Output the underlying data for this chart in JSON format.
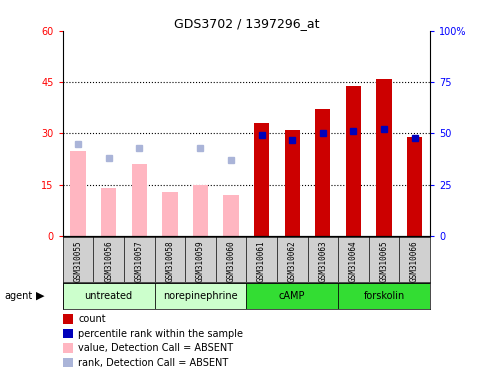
{
  "title": "GDS3702 / 1397296_at",
  "samples": [
    "GSM310055",
    "GSM310056",
    "GSM310057",
    "GSM310058",
    "GSM310059",
    "GSM310060",
    "GSM310061",
    "GSM310062",
    "GSM310063",
    "GSM310064",
    "GSM310065",
    "GSM310066"
  ],
  "count_values": [
    null,
    null,
    null,
    null,
    null,
    null,
    33,
    31,
    37,
    44,
    46,
    29
  ],
  "value_absent": [
    25,
    14,
    21,
    13,
    15,
    12,
    null,
    null,
    null,
    null,
    null,
    null
  ],
  "rank_absent_pct": [
    45,
    38,
    43,
    null,
    43,
    37,
    null,
    null,
    null,
    null,
    null,
    null
  ],
  "percentile_rank_pct": [
    null,
    null,
    null,
    null,
    null,
    null,
    49,
    47,
    50,
    51,
    52,
    48
  ],
  "ylim_left": [
    0,
    60
  ],
  "ylim_right": [
    0,
    100
  ],
  "yticks_left": [
    0,
    15,
    30,
    45,
    60
  ],
  "yticks_right": [
    0,
    25,
    50,
    75,
    100
  ],
  "yticklabels_left": [
    "0",
    "15",
    "30",
    "45",
    "60"
  ],
  "yticklabels_right": [
    "0",
    "25",
    "50",
    "75",
    "100%"
  ],
  "groups": [
    {
      "label": "untreated",
      "indices": [
        0,
        1,
        2
      ],
      "light": true
    },
    {
      "label": "norepinephrine",
      "indices": [
        3,
        4,
        5
      ],
      "light": true
    },
    {
      "label": "cAMP",
      "indices": [
        6,
        7,
        8
      ],
      "light": false
    },
    {
      "label": "forskolin",
      "indices": [
        9,
        10,
        11
      ],
      "light": false
    }
  ],
  "count_color": "#cc0000",
  "value_absent_color": "#ffb6c1",
  "rank_absent_color": "#aab4d8",
  "percentile_color": "#0000bb",
  "group_light_color": "#ccffcc",
  "group_dark_color": "#33dd33",
  "legend_items": [
    {
      "label": "count",
      "color": "#cc0000"
    },
    {
      "label": "percentile rank within the sample",
      "color": "#0000bb"
    },
    {
      "label": "value, Detection Call = ABSENT",
      "color": "#ffb6c1"
    },
    {
      "label": "rank, Detection Call = ABSENT",
      "color": "#aab4d8"
    }
  ]
}
